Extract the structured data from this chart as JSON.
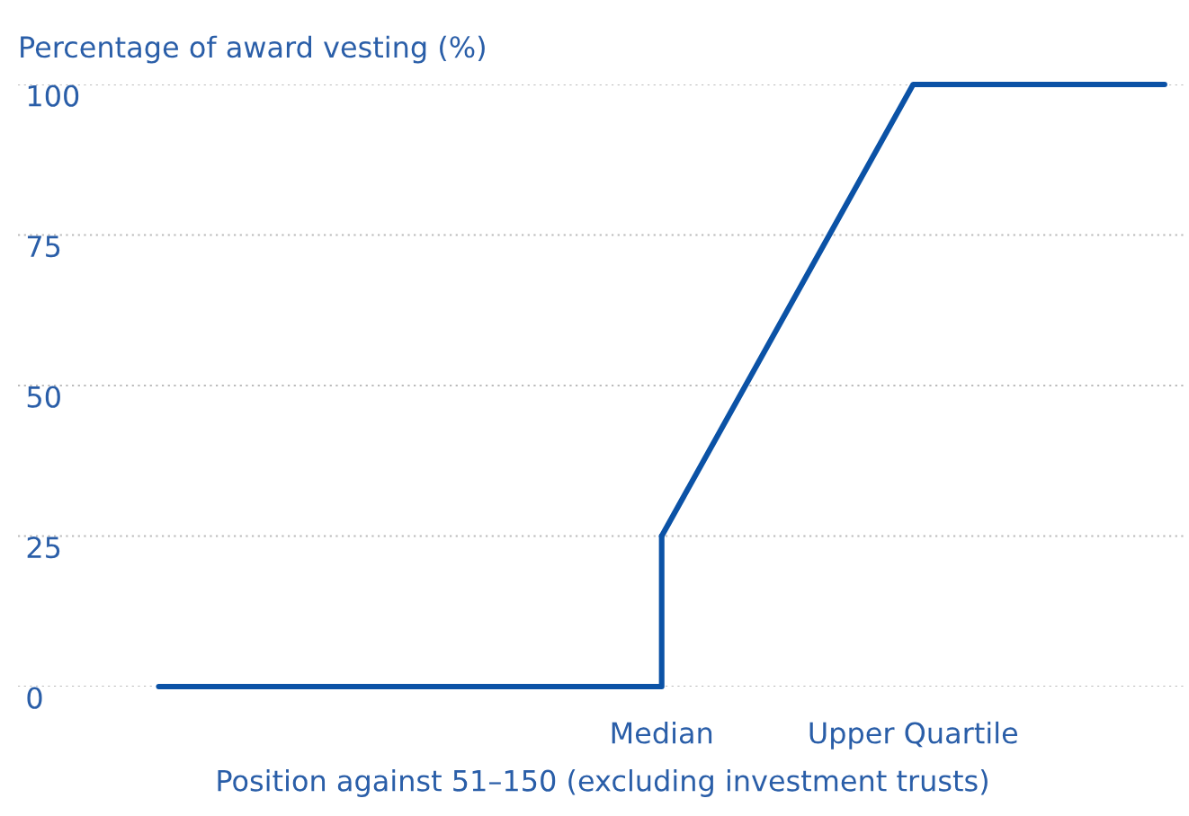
{
  "chart_data": {
    "type": "line",
    "ylabel": "Percentage of award vesting (%)",
    "xlabel": "Position against 51–150 (excluding investment trusts)",
    "categories": [
      null,
      null,
      "Median",
      "Upper Quartile",
      null
    ],
    "series": [
      {
        "type": "step",
        "color": "#0b52a6",
        "values": [
          0,
          0,
          25,
          null,
          null
        ]
      },
      {
        "color": "#0b52a6",
        "values": [
          null,
          null,
          25,
          100,
          100
        ]
      }
    ],
    "ylim": [
      0,
      100
    ],
    "yticks": [
      0,
      25,
      50,
      75,
      100
    ],
    "grid": "y",
    "marker": "none",
    "line_style": "solid"
  }
}
